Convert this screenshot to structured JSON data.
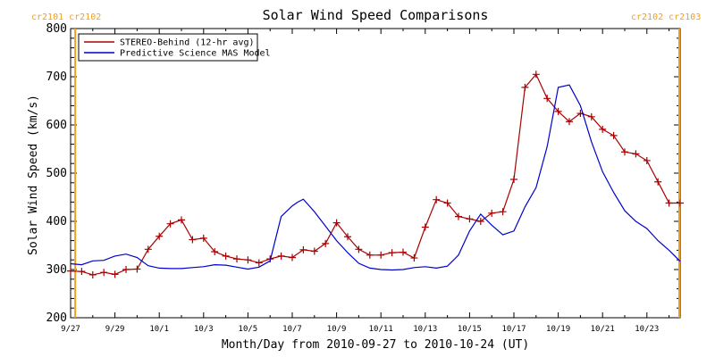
{
  "chart_data": {
    "type": "line",
    "title": "Solar Wind Speed Comparisons",
    "xlabel": "Month/Day from 2010-09-27 to 2010-10-24 (UT)",
    "ylabel": "Solar Wind Speed (km/s)",
    "ylim": [
      200,
      800
    ],
    "xlim": [
      "2010-09-27",
      "2010-10-24T12:00"
    ],
    "x_tick_labels": [
      "9/27",
      "9/29",
      "10/1",
      "10/3",
      "10/5",
      "10/7",
      "10/9",
      "10/11",
      "10/13",
      "10/15",
      "10/17",
      "10/19",
      "10/21",
      "10/23"
    ],
    "y_tick_labels": [
      "200",
      "300",
      "400",
      "500",
      "600",
      "700",
      "800"
    ],
    "grid": false,
    "legend_position": "top-left",
    "carrington_markers": [
      {
        "time": "2010-09-27T05:00",
        "label": "cr2101 cr2102",
        "color": "#f0a020"
      },
      {
        "time": "2010-10-24T11:00",
        "label": "cr2102 cr2103",
        "color": "#f0a020"
      }
    ],
    "series": [
      {
        "name": "STEREO-Behind (12-hr avg)",
        "color": "#aa0000",
        "marker": "+",
        "x": [
          "2010-09-27T00:00",
          "2010-09-27T12:00",
          "2010-09-28T00:00",
          "2010-09-28T12:00",
          "2010-09-29T00:00",
          "2010-09-29T12:00",
          "2010-09-30T00:00",
          "2010-09-30T12:00",
          "2010-10-01T00:00",
          "2010-10-01T12:00",
          "2010-10-02T00:00",
          "2010-10-02T12:00",
          "2010-10-03T00:00",
          "2010-10-03T12:00",
          "2010-10-04T00:00",
          "2010-10-04T12:00",
          "2010-10-05T00:00",
          "2010-10-05T12:00",
          "2010-10-06T00:00",
          "2010-10-06T12:00",
          "2010-10-07T00:00",
          "2010-10-07T12:00",
          "2010-10-08T00:00",
          "2010-10-08T12:00",
          "2010-10-09T00:00",
          "2010-10-09T12:00",
          "2010-10-10T00:00",
          "2010-10-10T12:00",
          "2010-10-11T00:00",
          "2010-10-11T12:00",
          "2010-10-12T00:00",
          "2010-10-12T12:00",
          "2010-10-13T00:00",
          "2010-10-13T12:00",
          "2010-10-14T00:00",
          "2010-10-14T12:00",
          "2010-10-15T00:00",
          "2010-10-15T12:00",
          "2010-10-16T00:00",
          "2010-10-16T12:00",
          "2010-10-17T00:00",
          "2010-10-17T12:00",
          "2010-10-18T00:00",
          "2010-10-18T12:00",
          "2010-10-19T00:00",
          "2010-10-19T12:00",
          "2010-10-20T00:00",
          "2010-10-20T12:00",
          "2010-10-21T00:00",
          "2010-10-21T12:00",
          "2010-10-22T00:00",
          "2010-10-22T12:00",
          "2010-10-23T00:00",
          "2010-10-23T12:00",
          "2010-10-24T00:00",
          "2010-10-24T12:00"
        ],
        "values": [
          297,
          296,
          289,
          294,
          290,
          300,
          301,
          342,
          369,
          395,
          403,
          362,
          365,
          337,
          328,
          322,
          320,
          314,
          322,
          328,
          325,
          341,
          338,
          354,
          397,
          368,
          342,
          330,
          330,
          335,
          336,
          324,
          388,
          445,
          438,
          410,
          405,
          400,
          417,
          420,
          487,
          678,
          705,
          655,
          628,
          607,
          624,
          617,
          591,
          578,
          544,
          540,
          526,
          482,
          438,
          438
        ]
      },
      {
        "name": "Predictive Science MAS Model",
        "color": "#0000cc",
        "marker": "",
        "x": [
          "2010-09-27T00:00",
          "2010-09-27T12:00",
          "2010-09-28T00:00",
          "2010-09-28T12:00",
          "2010-09-29T00:00",
          "2010-09-29T12:00",
          "2010-09-30T00:00",
          "2010-09-30T12:00",
          "2010-10-01T00:00",
          "2010-10-01T12:00",
          "2010-10-02T00:00",
          "2010-10-02T12:00",
          "2010-10-03T00:00",
          "2010-10-03T12:00",
          "2010-10-04T00:00",
          "2010-10-04T12:00",
          "2010-10-05T00:00",
          "2010-10-05T12:00",
          "2010-10-06T00:00",
          "2010-10-06T12:00",
          "2010-10-07T00:00",
          "2010-10-07T06:00",
          "2010-10-07T12:00",
          "2010-10-08T00:00",
          "2010-10-08T12:00",
          "2010-10-09T00:00",
          "2010-10-09T12:00",
          "2010-10-10T00:00",
          "2010-10-10T12:00",
          "2010-10-11T00:00",
          "2010-10-11T12:00",
          "2010-10-12T00:00",
          "2010-10-12T12:00",
          "2010-10-13T00:00",
          "2010-10-13T12:00",
          "2010-10-14T00:00",
          "2010-10-14T12:00",
          "2010-10-15T00:00",
          "2010-10-15T12:00",
          "2010-10-16T00:00",
          "2010-10-16T12:00",
          "2010-10-17T00:00",
          "2010-10-17T12:00",
          "2010-10-18T00:00",
          "2010-10-18T12:00",
          "2010-10-19T00:00",
          "2010-10-19T12:00",
          "2010-10-20T00:00",
          "2010-10-20T12:00",
          "2010-10-21T00:00",
          "2010-10-21T12:00",
          "2010-10-22T00:00",
          "2010-10-22T12:00",
          "2010-10-23T00:00",
          "2010-10-23T12:00",
          "2010-10-24T00:00",
          "2010-10-24T12:00"
        ],
        "values": [
          312,
          310,
          318,
          319,
          328,
          332,
          325,
          308,
          303,
          302,
          302,
          304,
          306,
          310,
          309,
          305,
          301,
          305,
          318,
          410,
          432,
          440,
          446,
          420,
          390,
          360,
          335,
          313,
          303,
          300,
          299,
          300,
          304,
          306,
          303,
          307,
          330,
          380,
          415,
          392,
          372,
          380,
          430,
          470,
          555,
          678,
          683,
          640,
          565,
          503,
          460,
          422,
          400,
          385,
          360,
          340,
          317
        ]
      }
    ]
  }
}
